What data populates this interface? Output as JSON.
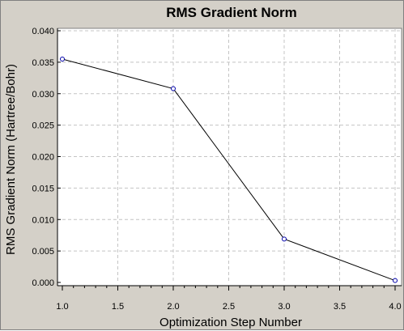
{
  "chart_data": {
    "type": "line",
    "title": "RMS Gradient Norm",
    "xlabel": "Optimization Step Number",
    "ylabel": "RMS Gradient Norm (Hartree/Bohr)",
    "xlim": [
      1.0,
      4.0
    ],
    "ylim": [
      0.0,
      0.04
    ],
    "xticks": [
      "1.0",
      "1.5",
      "2.0",
      "2.5",
      "3.0",
      "3.5",
      "4.0"
    ],
    "yticks": [
      "0.000",
      "0.005",
      "0.010",
      "0.015",
      "0.020",
      "0.025",
      "0.030",
      "0.035",
      "0.040"
    ],
    "grid": true,
    "legend": "none",
    "series": [
      {
        "x": [
          1,
          2,
          3,
          4
        ],
        "y": [
          0.0355,
          0.0308,
          0.0069,
          0.0003
        ],
        "line_color": "#000000",
        "marker_color": "#0000aa"
      }
    ]
  },
  "colors": {
    "background": "#d4d0c8",
    "plot_background": "#ffffff"
  }
}
